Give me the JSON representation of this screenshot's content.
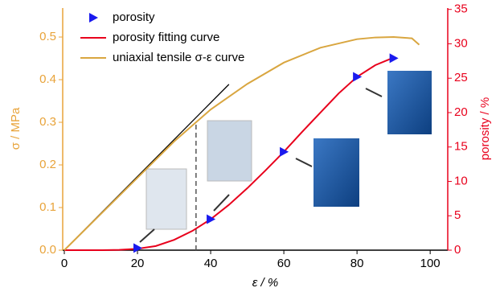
{
  "chart_data": {
    "type": "line",
    "xlabel": "ε / %",
    "ylabel": "σ / MPa",
    "y2label": "porosity / %",
    "xlim": [
      -0.44,
      104.8
    ],
    "xticks": [
      0,
      20,
      40,
      60,
      80,
      100
    ],
    "ylim": [
      0,
      0.568
    ],
    "yticks": [
      {
        "value": 0,
        "label": "0.0"
      },
      0.1,
      0.2,
      0.3,
      0.4,
      0.5
    ],
    "y2lim": [
      0,
      35.2
    ],
    "y2ticks": [
      0,
      5,
      10,
      15,
      20,
      25,
      30,
      35
    ],
    "series": [
      {
        "name": "porosity",
        "kind": "scatter",
        "axis": "y2",
        "color": "#1a1aee",
        "x": [
          20,
          40,
          60,
          80,
          90
        ],
        "values": [
          0.3,
          4.5,
          14.3,
          25.2,
          27.9
        ]
      },
      {
        "name": "porosity fitting curve",
        "kind": "line",
        "axis": "y2",
        "color": "#e8001c",
        "x": [
          0,
          10,
          15,
          20,
          25,
          30,
          35,
          40,
          45,
          50,
          55,
          60,
          65,
          70,
          75,
          80,
          85,
          90
        ],
        "values": [
          0,
          0,
          0.05,
          0.2,
          0.6,
          1.5,
          2.8,
          4.5,
          6.6,
          9,
          11.6,
          14.3,
          17.2,
          20,
          22.8,
          25.2,
          26.9,
          28
        ]
      },
      {
        "name": "uniaxial tensile σ-ε curve",
        "kind": "line",
        "axis": "y",
        "color": "#d9a640",
        "x": [
          0,
          10,
          20,
          30,
          36,
          40,
          50,
          60,
          70,
          80,
          85,
          90,
          95,
          97
        ],
        "values": [
          0,
          0.085,
          0.17,
          0.255,
          0.3,
          0.33,
          0.39,
          0.44,
          0.475,
          0.495,
          0.499,
          0.5,
          0.497,
          0.482
        ]
      }
    ],
    "reference_line": {
      "color": "#000000",
      "x": [
        0,
        45
      ],
      "values": [
        0,
        0.389
      ]
    },
    "vline": 36
  }
}
